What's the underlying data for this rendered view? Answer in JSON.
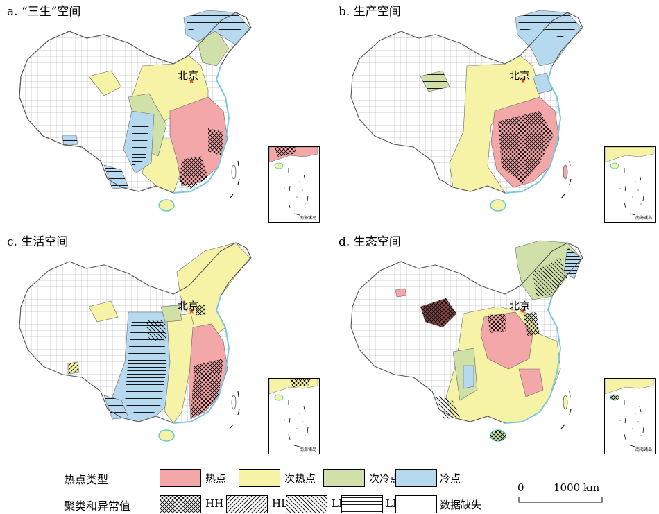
{
  "panels": [
    {
      "title": "a. “三生”空间",
      "capital": "北京",
      "inset_label": "南海诸岛"
    },
    {
      "title": "b. 生产空间",
      "capital": "北京",
      "inset_label": "南海诸岛"
    },
    {
      "title": "c. 生活空间",
      "capital": "北京",
      "inset_label": "南海诸岛"
    },
    {
      "title": "d. 生态空间",
      "capital": "北京",
      "inset_label": "南海诸岛"
    }
  ],
  "legend": {
    "hotspot_heading": "热点类型",
    "hotspot_items": [
      {
        "label": "热点",
        "color": "#f4a7a9"
      },
      {
        "label": "次热点",
        "color": "#f6f3a6"
      },
      {
        "label": "次冷点",
        "color": "#cfe0a8"
      },
      {
        "label": "冷点",
        "color": "#b7d9ef"
      }
    ],
    "cluster_heading": "聚类和异常值",
    "cluster_items": [
      {
        "label": "HH",
        "pattern": "crosshatch"
      },
      {
        "label": "HL",
        "pattern": "diagonal-right"
      },
      {
        "label": "LH",
        "pattern": "diagonal-left"
      },
      {
        "label": "LL",
        "pattern": "horizontal"
      },
      {
        "label": "数据缺失",
        "pattern": "none"
      }
    ]
  },
  "scalebar": {
    "start": "0",
    "end": "1000 km"
  }
}
